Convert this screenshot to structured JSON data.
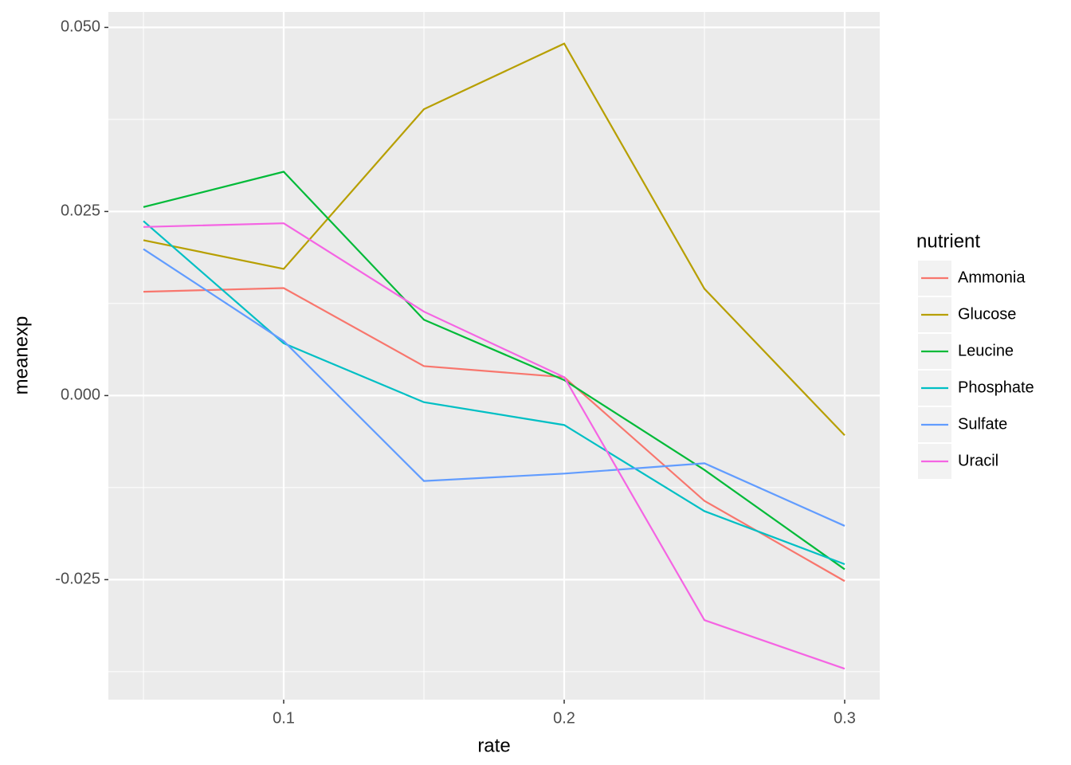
{
  "chart_data": {
    "type": "line",
    "x_label": "rate",
    "y_label": "meanexp",
    "legend_title": "nutrient",
    "x": [
      0.05,
      0.1,
      0.15,
      0.2,
      0.25,
      0.3
    ],
    "series": [
      {
        "name": "Ammonia",
        "color": "#F8766D",
        "values": [
          0.0141,
          0.0146,
          0.004,
          0.0025,
          -0.0143,
          -0.0252
        ]
      },
      {
        "name": "Glucose",
        "color": "#B79F00",
        "values": [
          0.0211,
          0.0172,
          0.0389,
          0.0478,
          0.0145,
          -0.0054
        ]
      },
      {
        "name": "Leucine",
        "color": "#00BA38",
        "values": [
          0.0256,
          0.0304,
          0.0103,
          0.0021,
          -0.0101,
          -0.0236
        ]
      },
      {
        "name": "Phosphate",
        "color": "#00BFC4",
        "values": [
          0.0237,
          0.0071,
          -0.0009,
          -0.004,
          -0.0157,
          -0.0229
        ]
      },
      {
        "name": "Sulfate",
        "color": "#619CFF",
        "values": [
          0.0199,
          0.0074,
          -0.0116,
          -0.0106,
          -0.0092,
          -0.0177
        ]
      },
      {
        "name": "Uracil",
        "color": "#F564E3",
        "values": [
          0.0229,
          0.0234,
          0.0114,
          0.0025,
          -0.0305,
          -0.0371
        ]
      }
    ],
    "xlim": [
      0.0375,
      0.3125
    ],
    "xticks": [
      0.1,
      0.2,
      0.3
    ],
    "ylim": [
      -0.0413,
      0.0521
    ],
    "yticks": [
      -0.025,
      {
        "value": 0,
        "label": "0.000"
      },
      0.025,
      {
        "value": 0.05,
        "label": "0.050"
      }
    ],
    "grid": true,
    "minor_grid": true,
    "legend": "right"
  }
}
